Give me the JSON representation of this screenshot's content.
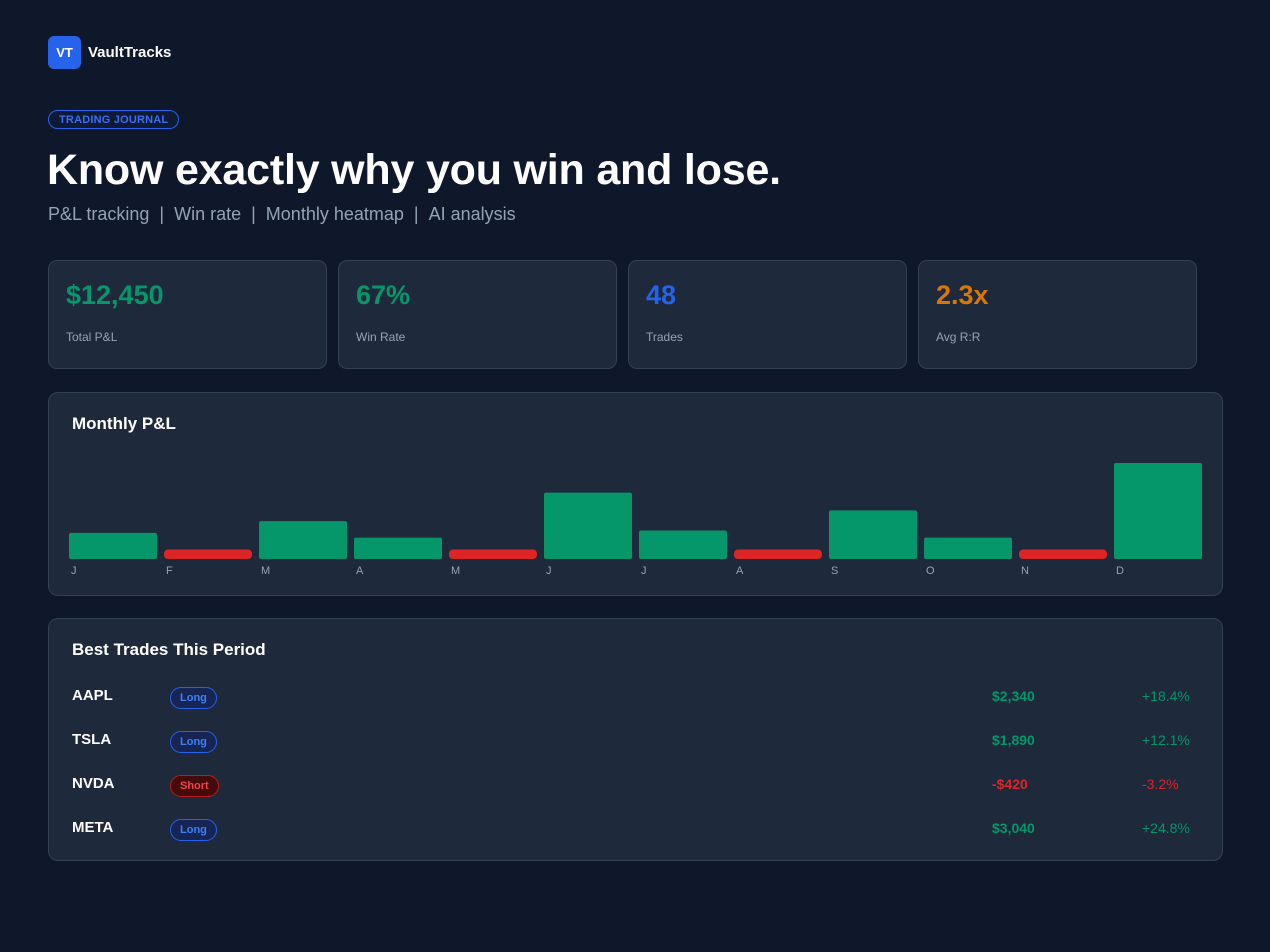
{
  "brand": {
    "logo_text": "VT",
    "name": "VaultTracks"
  },
  "hero": {
    "badge": "TRADING JOURNAL",
    "headline": "Know exactly why you win and lose.",
    "features": [
      "P&L tracking",
      "Win rate",
      "Monthly heatmap",
      "AI analysis"
    ],
    "separator": "|"
  },
  "stats": [
    {
      "value": "$12,450",
      "label": "Total P&L",
      "color": "#059669"
    },
    {
      "value": "67%",
      "label": "Win Rate",
      "color": "#059669"
    },
    {
      "value": "48",
      "label": "Trades",
      "color": "#2563eb"
    },
    {
      "value": "2.3x",
      "label": "Avg R:R",
      "color": "#d97706"
    }
  ],
  "chart_data": {
    "type": "bar",
    "title": "Monthly P&L",
    "categories": [
      "J",
      "F",
      "M",
      "A",
      "M",
      "J",
      "J",
      "A",
      "S",
      "O",
      "N",
      "D"
    ],
    "values": [
      22,
      -8,
      32,
      18,
      -8,
      56,
      24,
      -8,
      41,
      18,
      -8,
      81
    ],
    "positive_color": "#059669",
    "negative_color": "#dc2626"
  },
  "trades": {
    "title": "Best Trades This Period",
    "rows": [
      {
        "symbol": "AAPL",
        "direction": "Long",
        "pnl": "$2,340",
        "pct": "+18.4%"
      },
      {
        "symbol": "TSLA",
        "direction": "Long",
        "pnl": "$1,890",
        "pct": "+12.1%"
      },
      {
        "symbol": "NVDA",
        "direction": "Short",
        "pnl": "-$420",
        "pct": "-3.2%"
      },
      {
        "symbol": "META",
        "direction": "Long",
        "pnl": "$3,040",
        "pct": "+24.8%"
      }
    ]
  }
}
